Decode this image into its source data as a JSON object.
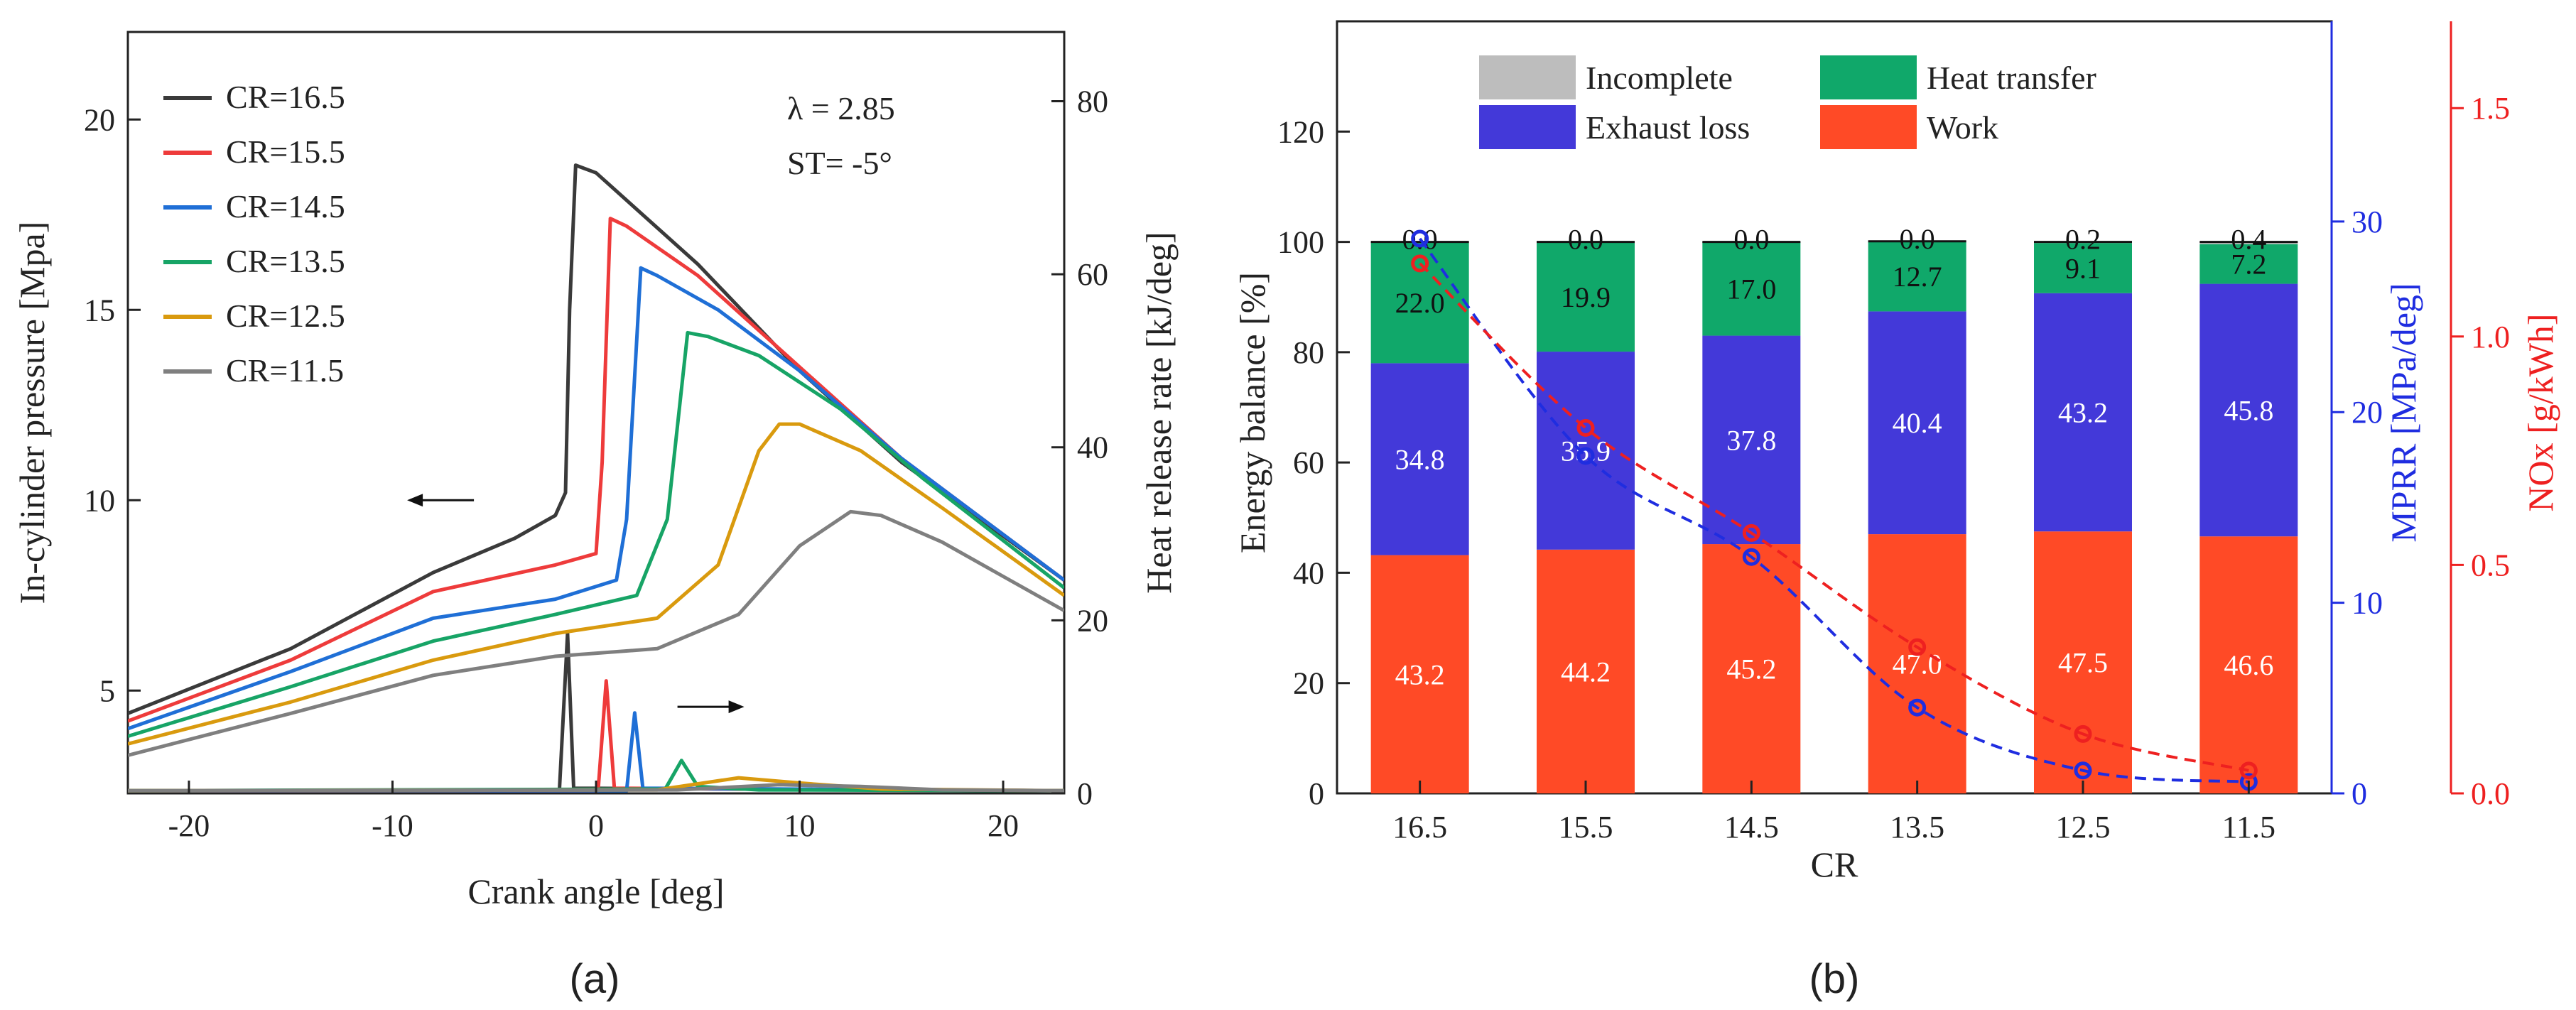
{
  "chart_data": [
    {
      "panel_label": "(a)",
      "type": "line",
      "xlabel": "Crank angle [deg]",
      "ylabel": "In-cylinder pressure [Mpa]",
      "y2label": "Heat release rate [kJ/deg]",
      "xlim": [
        -23,
        23
      ],
      "ylim": [
        2.3,
        22.3
      ],
      "y2lim": [
        0,
        88
      ],
      "xticks": [
        "-20",
        "-10",
        "0",
        "10",
        "20"
      ],
      "yticks": [
        "5",
        "10",
        "15",
        "20"
      ],
      "y2ticks": [
        "0",
        "20",
        "40",
        "60",
        "80"
      ],
      "annotations": [
        "λ =  2.85",
        "ST= -5°"
      ],
      "legend_position": "top-left",
      "pressure_series": [
        {
          "name": "CR=16.5",
          "color": "#3a3a3a",
          "points": [
            [
              -23,
              4.4
            ],
            [
              -15,
              6.1
            ],
            [
              -8,
              8.1
            ],
            [
              -4,
              9.0
            ],
            [
              -2,
              9.6
            ],
            [
              -1.5,
              10.2
            ],
            [
              -1.3,
              15.0
            ],
            [
              -1.0,
              18.8
            ],
            [
              0,
              18.6
            ],
            [
              5,
              16.2
            ],
            [
              10,
              13.4
            ],
            [
              15,
              11.0
            ],
            [
              23,
              7.9
            ]
          ]
        },
        {
          "name": "CR=15.5",
          "color": "#ee3b3b",
          "points": [
            [
              -23,
              4.2
            ],
            [
              -15,
              5.8
            ],
            [
              -8,
              7.6
            ],
            [
              -2,
              8.3
            ],
            [
              0,
              8.6
            ],
            [
              0.3,
              11.0
            ],
            [
              0.7,
              17.4
            ],
            [
              1.5,
              17.2
            ],
            [
              5,
              15.9
            ],
            [
              10,
              13.5
            ],
            [
              15,
              11.1
            ],
            [
              23,
              7.9
            ]
          ]
        },
        {
          "name": "CR=14.5",
          "color": "#1f6fd6",
          "points": [
            [
              -23,
              4.0
            ],
            [
              -15,
              5.5
            ],
            [
              -8,
              6.9
            ],
            [
              -2,
              7.4
            ],
            [
              1,
              7.9
            ],
            [
              1.5,
              9.5
            ],
            [
              2.2,
              16.1
            ],
            [
              3,
              15.9
            ],
            [
              6,
              15.0
            ],
            [
              10,
              13.4
            ],
            [
              15,
              11.1
            ],
            [
              23,
              7.9
            ]
          ]
        },
        {
          "name": "CR=13.5",
          "color": "#17a466",
          "points": [
            [
              -23,
              3.8
            ],
            [
              -15,
              5.1
            ],
            [
              -8,
              6.3
            ],
            [
              -2,
              7.0
            ],
            [
              2,
              7.5
            ],
            [
              3.5,
              9.5
            ],
            [
              4.5,
              14.4
            ],
            [
              5.5,
              14.3
            ],
            [
              8,
              13.8
            ],
            [
              12,
              12.4
            ],
            [
              16,
              10.6
            ],
            [
              23,
              7.7
            ]
          ]
        },
        {
          "name": "CR=12.5",
          "color": "#d99a0e",
          "points": [
            [
              -23,
              3.6
            ],
            [
              -15,
              4.7
            ],
            [
              -8,
              5.8
            ],
            [
              -2,
              6.5
            ],
            [
              3,
              6.9
            ],
            [
              6,
              8.3
            ],
            [
              8,
              11.3
            ],
            [
              9,
              12.0
            ],
            [
              10,
              12.0
            ],
            [
              13,
              11.3
            ],
            [
              17,
              9.8
            ],
            [
              23,
              7.5
            ]
          ]
        },
        {
          "name": "CR=11.5",
          "color": "#7f7f7f",
          "points": [
            [
              -23,
              3.3
            ],
            [
              -15,
              4.4
            ],
            [
              -8,
              5.4
            ],
            [
              -2,
              5.9
            ],
            [
              3,
              6.1
            ],
            [
              7,
              7.0
            ],
            [
              10,
              8.8
            ],
            [
              12.5,
              9.7
            ],
            [
              14,
              9.6
            ],
            [
              17,
              8.9
            ],
            [
              20,
              8.0
            ],
            [
              23,
              7.1
            ]
          ]
        }
      ],
      "heat_release_series": [
        {
          "name": "CR=16.5",
          "color": "#3a3a3a",
          "points": [
            [
              -23,
              0.3
            ],
            [
              -1.8,
              0.3
            ],
            [
              -1.4,
              18.5
            ],
            [
              -1.1,
              0.6
            ],
            [
              23,
              0.3
            ]
          ]
        },
        {
          "name": "CR=15.5",
          "color": "#ee3b3b",
          "points": [
            [
              -23,
              0.3
            ],
            [
              0.1,
              0.3
            ],
            [
              0.5,
              13.0
            ],
            [
              0.9,
              0.6
            ],
            [
              23,
              0.3
            ]
          ]
        },
        {
          "name": "CR=14.5",
          "color": "#1f6fd6",
          "points": [
            [
              -23,
              0.3
            ],
            [
              1.5,
              0.3
            ],
            [
              1.9,
              9.3
            ],
            [
              2.3,
              0.6
            ],
            [
              23,
              0.3
            ]
          ]
        },
        {
          "name": "CR=13.5",
          "color": "#17a466",
          "points": [
            [
              -23,
              0.3
            ],
            [
              3.4,
              0.5
            ],
            [
              4.2,
              3.8
            ],
            [
              5.0,
              0.8
            ],
            [
              8,
              0.4
            ],
            [
              23,
              0.3
            ]
          ]
        },
        {
          "name": "CR=12.5",
          "color": "#d99a0e",
          "points": [
            [
              -23,
              0.3
            ],
            [
              3,
              0.4
            ],
            [
              7,
              1.8
            ],
            [
              10,
              1.2
            ],
            [
              14,
              0.5
            ],
            [
              23,
              0.3
            ]
          ]
        },
        {
          "name": "CR=11.5",
          "color": "#7f7f7f",
          "points": [
            [
              -23,
              0.3
            ],
            [
              4,
              0.4
            ],
            [
              9,
              1.0
            ],
            [
              13,
              0.8
            ],
            [
              17,
              0.4
            ],
            [
              23,
              0.3
            ]
          ]
        }
      ],
      "arrows": [
        {
          "direction": "left",
          "axis": "pressure",
          "at": [
            -6,
            10.0
          ]
        },
        {
          "direction": "right",
          "axis": "heat_release",
          "at": [
            4,
            10
          ]
        }
      ]
    },
    {
      "panel_label": "(b)",
      "type": "bar",
      "stacked": true,
      "xlabel": "CR",
      "ylabel": "Energy balance [%]",
      "y2label": "MPRR [MPa/deg]",
      "y3label": "NOx [g/kWh]",
      "categories": [
        "16.5",
        "15.5",
        "14.5",
        "13.5",
        "12.5",
        "11.5"
      ],
      "ylim": [
        0,
        140
      ],
      "y2lim": [
        0,
        40.5
      ],
      "y3lim": [
        0,
        1.69
      ],
      "yticks": [
        "0",
        "20",
        "40",
        "60",
        "80",
        "100",
        "120"
      ],
      "y2ticks": [
        "0",
        "10",
        "20",
        "30"
      ],
      "y3ticks": [
        "0.0",
        "0.5",
        "1.0",
        "1.5"
      ],
      "legend_position": "top",
      "series": [
        {
          "name": "Work",
          "color": "#ff4a26",
          "label_color": "#ffffff",
          "values": [
            43.2,
            44.2,
            45.2,
            47.0,
            47.5,
            46.6
          ],
          "labels": [
            "43.2",
            "44.2",
            "45.2",
            "47.0",
            "47.5",
            "46.6"
          ]
        },
        {
          "name": "Exhaust loss",
          "color": "#4339d9",
          "label_color": "#ffffff",
          "values": [
            34.8,
            35.9,
            37.8,
            40.4,
            43.2,
            45.8
          ],
          "labels": [
            "34.8",
            "35.9",
            "37.8",
            "40.4",
            "43.2",
            "45.8"
          ]
        },
        {
          "name": "Heat transfer",
          "color": "#10a86a",
          "label_color": "#111111",
          "values": [
            22.0,
            19.9,
            17.0,
            12.7,
            9.1,
            7.2
          ],
          "labels": [
            "22.0",
            "19.9",
            "17.0",
            "12.7",
            "9.1",
            "7.2"
          ]
        },
        {
          "name": "Incomplete",
          "color": "#bdbdbd",
          "label_color": "#111111",
          "values": [
            0.0,
            0.0,
            0.0,
            0.0,
            0.2,
            0.4
          ],
          "labels": [
            "0.0",
            "0.0",
            "0.0",
            "0.0",
            "0.2",
            "0.4"
          ]
        }
      ],
      "legend_order": [
        "Incomplete",
        "Heat transfer",
        "Exhaust loss",
        "Work"
      ],
      "lines": [
        {
          "name": "MPRR",
          "axis": "y2",
          "color": "#1f2de0",
          "style": "dashed",
          "marker": "circle",
          "values": [
            29.1,
            17.7,
            12.4,
            4.5,
            1.2,
            0.6
          ]
        },
        {
          "name": "NOx",
          "axis": "y3",
          "color": "#ee2020",
          "style": "dashed",
          "marker": "circle",
          "values": [
            1.16,
            0.8,
            0.57,
            0.32,
            0.13,
            0.05
          ]
        }
      ]
    }
  ]
}
